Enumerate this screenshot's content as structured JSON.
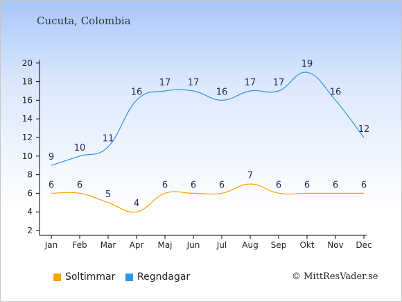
{
  "title": "Cucuta, Colombia",
  "copyright": "© MittResVader.se",
  "chart_data": {
    "type": "line",
    "categories": [
      "Jan",
      "Feb",
      "Mar",
      "Apr",
      "Maj",
      "Jun",
      "Jul",
      "Aug",
      "Sep",
      "Okt",
      "Nov",
      "Dec"
    ],
    "ylim": [
      2,
      20
    ],
    "yticks": [
      2,
      4,
      6,
      8,
      10,
      12,
      14,
      16,
      18,
      20
    ],
    "grid": false,
    "legend_position": "bottom-left",
    "series": [
      {
        "name": "Soltimmar",
        "color": "#ffa200",
        "values": [
          6,
          6,
          5,
          4,
          6,
          6,
          6,
          7,
          6,
          6,
          6,
          6
        ]
      },
      {
        "name": "Regndagar",
        "color": "#2c96e8",
        "values": [
          9,
          10,
          11,
          16,
          17,
          17,
          16,
          17,
          17,
          19,
          16,
          12
        ]
      }
    ]
  }
}
